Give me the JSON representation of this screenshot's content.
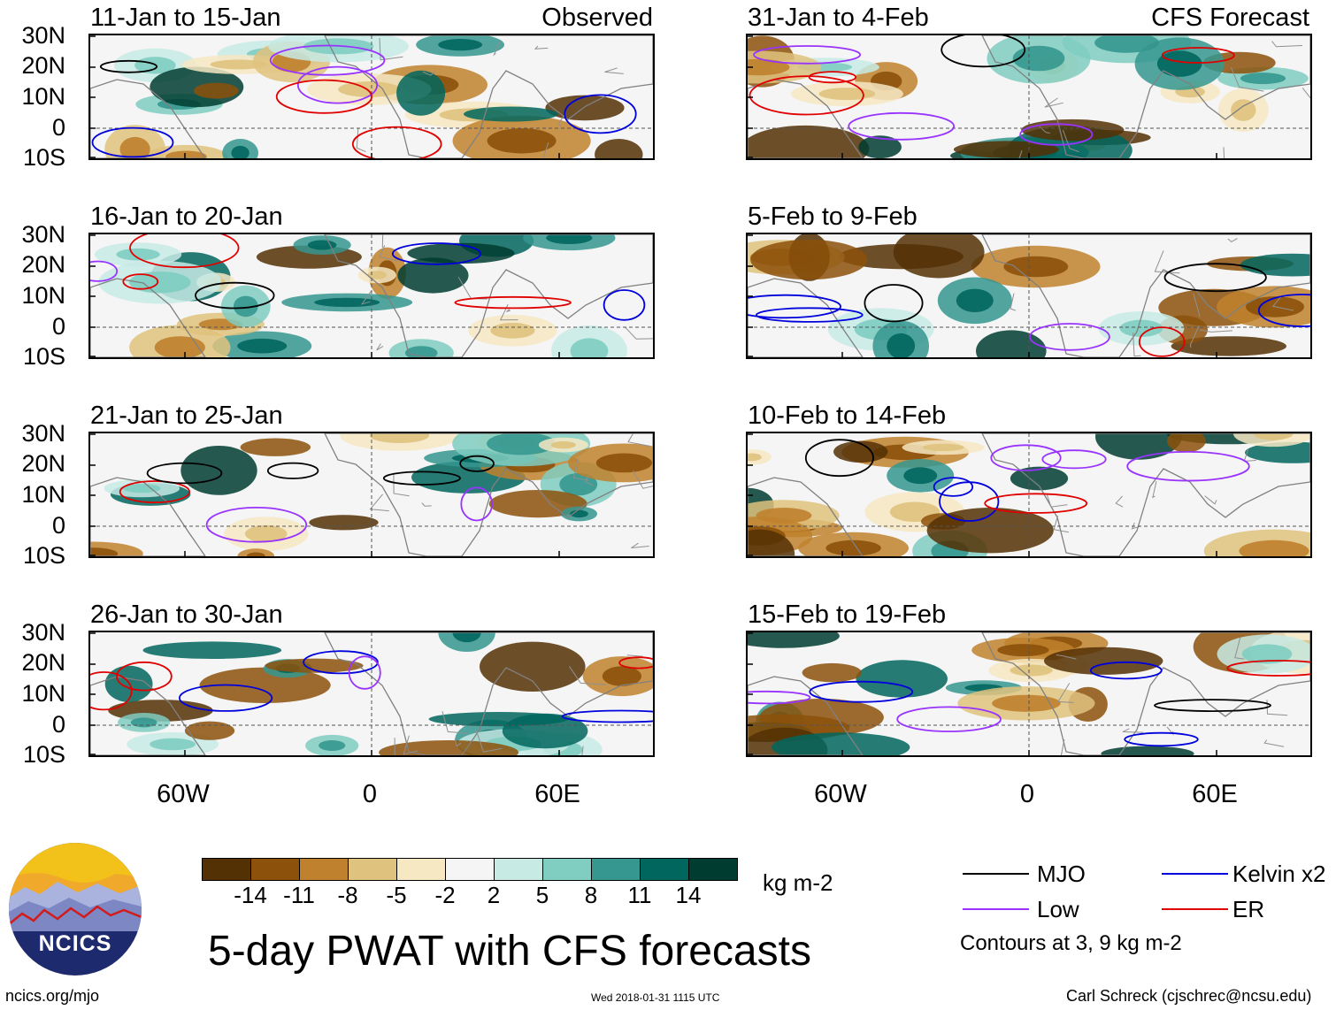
{
  "left_column": {
    "tag": "Observed",
    "panels": [
      {
        "title": "11-Jan to 15-Jan"
      },
      {
        "title": "16-Jan to 20-Jan"
      },
      {
        "title": "21-Jan to 25-Jan"
      },
      {
        "title": "26-Jan to 30-Jan"
      }
    ]
  },
  "right_column": {
    "tag": "CFS Forecast",
    "panels": [
      {
        "title": "31-Jan to 4-Feb"
      },
      {
        "title": "5-Feb to 9-Feb"
      },
      {
        "title": "10-Feb to 14-Feb"
      },
      {
        "title": "15-Feb to 19-Feb"
      }
    ]
  },
  "lat_labels": [
    "30N",
    "20N",
    "10N",
    "0",
    "10S"
  ],
  "lon_labels": [
    "60W",
    "0",
    "60E"
  ],
  "colorbar": {
    "labels": [
      "-14",
      "-11",
      "-8",
      "-5",
      "-2",
      "2",
      "5",
      "8",
      "11",
      "14"
    ],
    "colors": [
      "#543005",
      "#8c510a",
      "#bf812d",
      "#dfc27d",
      "#f6e8c3",
      "#f5f5f5",
      "#c7eae5",
      "#80cdc1",
      "#35978f",
      "#01665e",
      "#003c30"
    ],
    "units": "kg m-2"
  },
  "legend": {
    "items": [
      {
        "label": "MJO",
        "color": "#000000"
      },
      {
        "label": "Kelvin x2",
        "color": "#0000dd"
      },
      {
        "label": "Low",
        "color": "#9933ff"
      },
      {
        "label": "ER",
        "color": "#e00000"
      }
    ],
    "contours_note": "Contours at 3, 9 kg m-2"
  },
  "logo": {
    "text": "NCICS"
  },
  "title": "5-day PWAT with CFS forecasts",
  "footer": {
    "left": "ncics.org/mjo",
    "center": "Wed 2018-01-31 1115 UTC",
    "right": "Carl Schreck (cjschrec@ncsu.edu)"
  }
}
